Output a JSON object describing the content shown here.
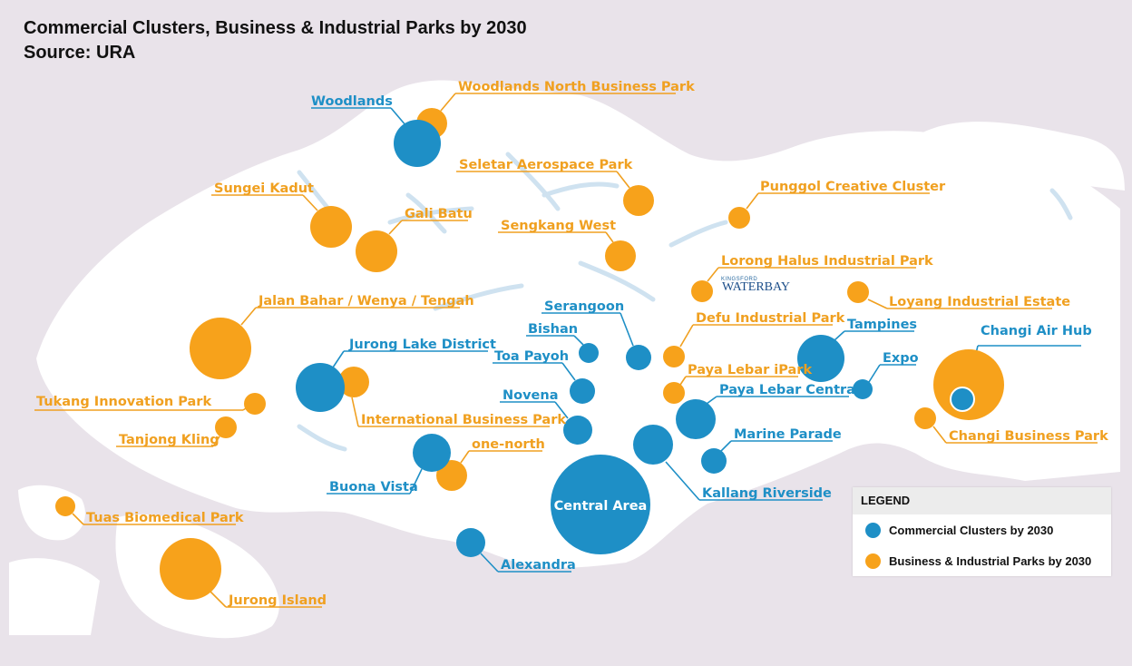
{
  "title": "Commercial Clusters, Business & Industrial Parks by 2030",
  "source": "Source: URA",
  "colors": {
    "commercial": "#1e8fc6",
    "parks": "#f7a21b",
    "land": "#ffffff",
    "sea": "#e9e3ea",
    "water": "#cfe2f0"
  },
  "legend": {
    "heading": "LEGEND",
    "commercial_label": "Commercial Clusters by 2030",
    "parks_label": "Business & Industrial Parks by 2030"
  },
  "waterbay_logo": {
    "small": "KINGSFORD",
    "big": "WATERBAY"
  },
  "commercial_clusters": [
    {
      "id": "woodlands",
      "name": "Woodlands"
    },
    {
      "id": "jurong-lake-district",
      "name": "Jurong Lake District"
    },
    {
      "id": "buona-vista",
      "name": "Buona Vista"
    },
    {
      "id": "alexandra",
      "name": "Alexandra"
    },
    {
      "id": "central-area",
      "name": "Central Area"
    },
    {
      "id": "serangoon",
      "name": "Serangoon"
    },
    {
      "id": "bishan",
      "name": "Bishan"
    },
    {
      "id": "toa-payoh",
      "name": "Toa Payoh"
    },
    {
      "id": "novena",
      "name": "Novena"
    },
    {
      "id": "kallang-riverside",
      "name": "Kallang Riverside"
    },
    {
      "id": "paya-lebar-central",
      "name": "Paya Lebar Central"
    },
    {
      "id": "marine-parade",
      "name": "Marine Parade"
    },
    {
      "id": "tampines",
      "name": "Tampines"
    },
    {
      "id": "expo",
      "name": "Expo"
    },
    {
      "id": "changi-air-hub",
      "name": "Changi Air Hub"
    }
  ],
  "business_parks": [
    {
      "id": "woodlands-north-business-park",
      "name": "Woodlands North Business Park"
    },
    {
      "id": "sungei-kadut",
      "name": "Sungei Kadut"
    },
    {
      "id": "gali-batu",
      "name": "Gali Batu"
    },
    {
      "id": "seletar-aerospace-park",
      "name": "Seletar Aerospace Park"
    },
    {
      "id": "sengkang-west",
      "name": "Sengkang West"
    },
    {
      "id": "punggol-creative-cluster",
      "name": "Punggol Creative Cluster"
    },
    {
      "id": "lorong-halus-industrial-park",
      "name": "Lorong Halus Industrial Park"
    },
    {
      "id": "loyang-industrial-estate",
      "name": "Loyang Industrial Estate"
    },
    {
      "id": "defu-industrial-park",
      "name": "Defu Industrial Park"
    },
    {
      "id": "paya-lebar-ipark",
      "name": "Paya Lebar iPark"
    },
    {
      "id": "jalan-bahar-wenya-tengah",
      "name": "Jalan Bahar / Wenya / Tengah"
    },
    {
      "id": "international-business-park",
      "name": "International Business Park"
    },
    {
      "id": "tukang-innovation-park",
      "name": "Tukang Innovation Park"
    },
    {
      "id": "tanjong-kling",
      "name": "Tanjong Kling"
    },
    {
      "id": "one-north",
      "name": "one-north"
    },
    {
      "id": "tuas-biomedical-park",
      "name": "Tuas Biomedical Park"
    },
    {
      "id": "jurong-island",
      "name": "Jurong Island"
    },
    {
      "id": "changi-business-park",
      "name": "Changi Business Park"
    }
  ]
}
